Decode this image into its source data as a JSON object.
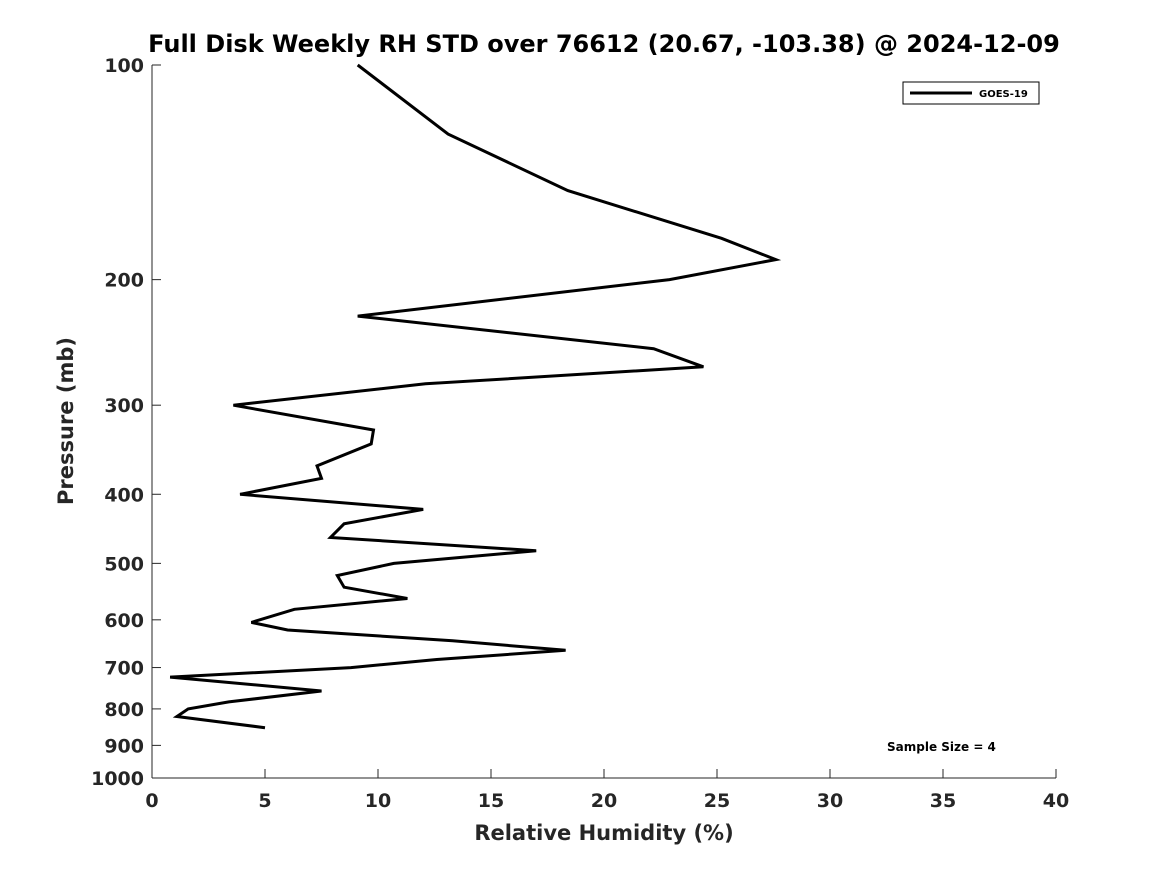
{
  "chart_data": {
    "type": "line",
    "title": "Full Disk Weekly RH STD over 76612 (20.67, -103.38) @ 2024-12-09",
    "xlabel": "Relative Humidity (%)",
    "ylabel": "Pressure (mb)",
    "xlim": [
      0,
      40
    ],
    "ylim": [
      100,
      1000
    ],
    "y_scale": "log",
    "y_direction": "reversed",
    "x_ticks": [
      0,
      5,
      10,
      15,
      20,
      25,
      30,
      35,
      40
    ],
    "x_tick_labels": [
      "0",
      "5",
      "10",
      "15",
      "20",
      "25",
      "30",
      "35",
      "40"
    ],
    "y_ticks": [
      100,
      200,
      300,
      400,
      500,
      600,
      700,
      800,
      900,
      1000
    ],
    "y_tick_labels": [
      "100",
      "200",
      "300",
      "400",
      "500",
      "600",
      "700",
      "800",
      "900",
      "1000"
    ],
    "grid": false,
    "legend_position": "top-right",
    "series": [
      {
        "name": "GOES-19",
        "color": "#000000",
        "points": [
          {
            "rh": 9.1,
            "p": 100
          },
          {
            "rh": 13.1,
            "p": 125
          },
          {
            "rh": 18.4,
            "p": 150
          },
          {
            "rh": 25.2,
            "p": 175
          },
          {
            "rh": 27.6,
            "p": 187.5
          },
          {
            "rh": 22.9,
            "p": 200
          },
          {
            "rh": 9.1,
            "p": 225
          },
          {
            "rh": 22.2,
            "p": 250
          },
          {
            "rh": 24.4,
            "p": 265
          },
          {
            "rh": 12.1,
            "p": 280
          },
          {
            "rh": 3.6,
            "p": 300
          },
          {
            "rh": 9.8,
            "p": 325
          },
          {
            "rh": 9.7,
            "p": 340
          },
          {
            "rh": 7.3,
            "p": 365
          },
          {
            "rh": 7.5,
            "p": 380
          },
          {
            "rh": 3.9,
            "p": 400
          },
          {
            "rh": 12.0,
            "p": 420
          },
          {
            "rh": 8.5,
            "p": 440
          },
          {
            "rh": 7.9,
            "p": 460
          },
          {
            "rh": 17.0,
            "p": 480
          },
          {
            "rh": 10.7,
            "p": 500
          },
          {
            "rh": 8.2,
            "p": 520
          },
          {
            "rh": 8.5,
            "p": 540
          },
          {
            "rh": 11.3,
            "p": 560
          },
          {
            "rh": 6.3,
            "p": 580
          },
          {
            "rh": 4.4,
            "p": 605
          },
          {
            "rh": 6.0,
            "p": 620
          },
          {
            "rh": 13.3,
            "p": 642
          },
          {
            "rh": 18.3,
            "p": 662
          },
          {
            "rh": 12.6,
            "p": 682
          },
          {
            "rh": 8.8,
            "p": 700
          },
          {
            "rh": 0.8,
            "p": 722
          },
          {
            "rh": 7.5,
            "p": 755
          },
          {
            "rh": 3.4,
            "p": 782
          },
          {
            "rh": 1.6,
            "p": 800
          },
          {
            "rh": 1.1,
            "p": 820
          },
          {
            "rh": 5.0,
            "p": 850
          }
        ]
      }
    ],
    "annotations": [
      {
        "text": "Sample Size = 4",
        "position": "bottom-right"
      }
    ]
  }
}
